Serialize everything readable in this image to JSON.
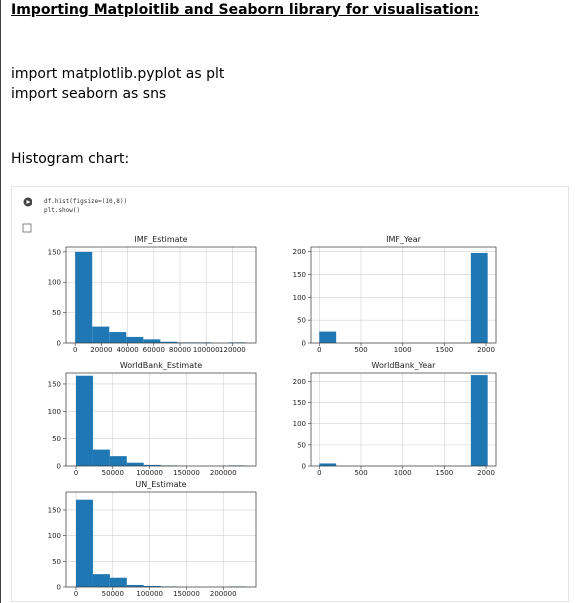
{
  "header": {
    "title": "Importing Matploitlib and Seaborn library for visualisation:"
  },
  "imports": [
    "import matplotlib.pyplot as plt",
    "import seaborn as sns"
  ],
  "section": "Histogram chart:",
  "notebook": {
    "code": [
      "df.hist(figsize=(10,8))",
      "plt.show()"
    ]
  },
  "charts": [
    {
      "type": "histogram",
      "title": "IMF_Estimate",
      "bins": [
        0,
        13000,
        26000,
        39000,
        52000,
        65000,
        78000,
        91000,
        104000,
        117000,
        130000
      ],
      "counts": [
        150,
        27,
        18,
        10,
        6,
        2,
        1,
        1,
        0,
        1
      ],
      "color": "#1f77b4",
      "xlim": [
        -7000,
        138000
      ],
      "ylim": [
        0,
        158
      ],
      "xticks": [
        0,
        20000,
        40000,
        60000,
        80000,
        100000,
        120000
      ],
      "yticks": [
        0,
        50,
        100,
        150
      ],
      "grid": true
    },
    {
      "type": "histogram",
      "title": "IMF_Year",
      "bins": [
        0,
        202,
        404,
        606,
        808,
        1010,
        1212,
        1414,
        1616,
        1818,
        2020
      ],
      "counts": [
        25,
        0,
        0,
        0,
        0,
        0,
        0,
        0,
        0,
        197
      ],
      "color": "#1f77b4",
      "xlim": [
        -100,
        2120
      ],
      "ylim": [
        0,
        210
      ],
      "xticks": [
        0,
        500,
        1000,
        1500,
        2000
      ],
      "yticks": [
        0,
        50,
        100,
        150,
        200
      ],
      "grid": true
    },
    {
      "type": "histogram",
      "title": "WorldBank_Estimate",
      "bins": [
        0,
        23000,
        46000,
        69000,
        92000,
        115000,
        138000,
        161000,
        184000,
        207000,
        230000
      ],
      "counts": [
        165,
        30,
        18,
        6,
        2,
        1,
        0,
        0,
        0,
        1
      ],
      "color": "#1f77b4",
      "xlim": [
        -13600,
        244500
      ],
      "ylim": [
        0,
        170
      ],
      "xticks": [
        0,
        50000,
        100000,
        150000,
        200000
      ],
      "yticks": [
        0,
        50,
        100,
        150
      ],
      "grid": true
    },
    {
      "type": "histogram",
      "title": "WorldBank_Year",
      "bins": [
        0,
        202,
        404,
        606,
        808,
        1010,
        1212,
        1414,
        1616,
        1818,
        2020
      ],
      "counts": [
        6,
        0,
        0,
        0,
        0,
        0,
        0,
        0,
        0,
        215
      ],
      "color": "#1f77b4",
      "xlim": [
        -100,
        2120
      ],
      "ylim": [
        0,
        220
      ],
      "xticks": [
        0,
        500,
        1000,
        1500,
        2000
      ],
      "yticks": [
        0,
        50,
        100,
        150,
        200
      ],
      "grid": true
    },
    {
      "type": "histogram",
      "title": "UN_Estimate",
      "bins": [
        0,
        23000,
        46000,
        69000,
        92000,
        115000,
        138000,
        161000,
        184000,
        207000,
        230000
      ],
      "counts": [
        170,
        25,
        18,
        4,
        2,
        1,
        0,
        0,
        0,
        1
      ],
      "color": "#1f77b4",
      "xlim": [
        -13600,
        244500
      ],
      "ylim": [
        0,
        185
      ],
      "xticks": [
        0,
        50000,
        100000,
        150000,
        200000
      ],
      "yticks": [
        0,
        50,
        100,
        150
      ],
      "grid": true
    }
  ]
}
